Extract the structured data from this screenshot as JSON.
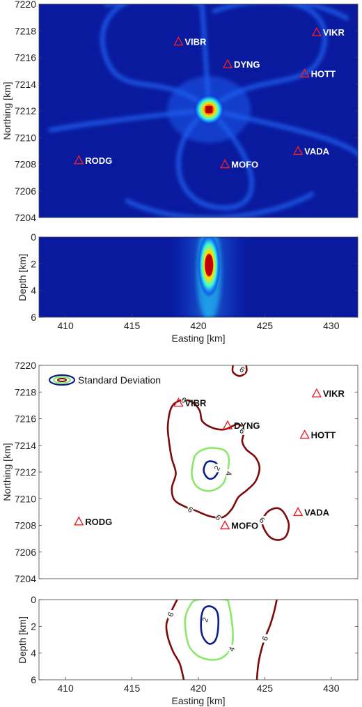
{
  "chart_data": [
    {
      "type": "heatmap",
      "panel": "map-density",
      "colormap": "jet",
      "xlim": [
        408,
        432
      ],
      "ylim": [
        7204,
        7220
      ],
      "xticks": [
        410,
        415,
        420,
        425,
        430
      ],
      "yticks": [
        7204,
        7206,
        7208,
        7210,
        7212,
        7214,
        7216,
        7218,
        7220
      ],
      "xlabel": "",
      "ylabel": "Northing [km]",
      "peak": {
        "x": 420.8,
        "y": 7212.1
      },
      "stations": [
        {
          "name": "VIBR",
          "x": 418.5,
          "y": 7217.2
        },
        {
          "name": "VIKR",
          "x": 428.9,
          "y": 7217.9
        },
        {
          "name": "DYNG",
          "x": 422.2,
          "y": 7215.5
        },
        {
          "name": "HOTT",
          "x": 428.0,
          "y": 7214.8
        },
        {
          "name": "VADA",
          "x": 427.5,
          "y": 7209.0
        },
        {
          "name": "RODG",
          "x": 411.0,
          "y": 7208.3
        },
        {
          "name": "MOFO",
          "x": 422.0,
          "y": 7208.0
        }
      ]
    },
    {
      "type": "heatmap",
      "panel": "depth-density",
      "colormap": "jet",
      "xlim": [
        408,
        432
      ],
      "ylim": [
        6,
        0
      ],
      "xticks": [
        410,
        415,
        420,
        425,
        430
      ],
      "yticks": [
        0,
        2,
        4,
        6
      ],
      "xlabel": "Easting [km]",
      "ylabel": "Depth [km]",
      "peak": {
        "x": 420.8,
        "depth": 2.1
      }
    },
    {
      "type": "line",
      "panel": "map-std-contours",
      "xlim": [
        408,
        432
      ],
      "ylim": [
        7204,
        7220
      ],
      "xticks": [
        410,
        415,
        420,
        425,
        430
      ],
      "yticks": [
        7204,
        7206,
        7208,
        7210,
        7212,
        7214,
        7216,
        7218,
        7220
      ],
      "xlabel": "",
      "ylabel": "Northing [km]",
      "legend": {
        "label": "Standard Deviation",
        "placement": "top-left"
      },
      "contour_labels": [
        "6",
        "6",
        "6",
        "6",
        "6",
        "6",
        "4",
        "2"
      ],
      "contours": [
        {
          "level": 2,
          "color": "#0b1e8c",
          "points": [
            [
              420.4,
              7212.2
            ],
            [
              420.6,
              7212.7
            ],
            [
              421.0,
              7212.8
            ],
            [
              421.4,
              7212.6
            ],
            [
              421.5,
              7212.1
            ],
            [
              421.2,
              7211.6
            ],
            [
              420.8,
              7211.5
            ],
            [
              420.5,
              7211.8
            ]
          ]
        },
        {
          "level": 4,
          "color": "#8be86a",
          "points": [
            [
              419.6,
              7212.7
            ],
            [
              419.8,
              7213.3
            ],
            [
              420.4,
              7213.7
            ],
            [
              421.2,
              7213.8
            ],
            [
              422.0,
              7213.6
            ],
            [
              422.3,
              7213.0
            ],
            [
              422.2,
              7212.1
            ],
            [
              421.9,
              7211.2
            ],
            [
              421.3,
              7210.7
            ],
            [
              420.5,
              7210.6
            ],
            [
              419.8,
              7211.0
            ],
            [
              419.5,
              7211.8
            ]
          ]
        },
        {
          "level": 6,
          "color": "#7b0c0c",
          "points": [
            [
              418.0,
              7216.9
            ],
            [
              418.8,
              7217.4
            ],
            [
              419.6,
              7217.2
            ],
            [
              420.1,
              7216.6
            ],
            [
              420.3,
              7215.8
            ],
            [
              421.1,
              7215.3
            ],
            [
              422.0,
              7215.2
            ],
            [
              423.0,
              7215.6
            ],
            [
              423.4,
              7215.0
            ],
            [
              423.3,
              7214.3
            ],
            [
              423.6,
              7213.7
            ],
            [
              424.3,
              7213.1
            ],
            [
              424.6,
              7212.3
            ],
            [
              424.3,
              7211.3
            ],
            [
              423.6,
              7210.6
            ],
            [
              423.0,
              7210.1
            ],
            [
              422.5,
              7209.2
            ],
            [
              421.8,
              7208.6
            ],
            [
              420.8,
              7208.7
            ],
            [
              419.8,
              7209.1
            ],
            [
              419.0,
              7209.4
            ],
            [
              418.2,
              7209.9
            ],
            [
              418.0,
              7210.8
            ],
            [
              418.3,
              7211.9
            ],
            [
              418.0,
              7213.0
            ],
            [
              417.8,
              7214.2
            ],
            [
              417.7,
              7215.5
            ]
          ]
        },
        {
          "level": 6,
          "color": "#7b0c0c",
          "points": [
            [
              424.8,
              7208.2
            ],
            [
              425.2,
              7209.0
            ],
            [
              425.9,
              7209.3
            ],
            [
              426.4,
              7209.0
            ],
            [
              426.8,
              7208.1
            ],
            [
              426.6,
              7207.2
            ],
            [
              426.0,
              7206.9
            ],
            [
              425.3,
              7207.2
            ]
          ]
        },
        {
          "level": 6,
          "color": "#7b0c0c",
          "points": [
            [
              422.6,
              7220.0
            ],
            [
              422.6,
              7219.5
            ],
            [
              423.1,
              7219.2
            ],
            [
              423.6,
              7219.5
            ],
            [
              423.6,
              7220.0
            ]
          ]
        }
      ],
      "stations": [
        {
          "name": "VIBR",
          "x": 418.5,
          "y": 7217.2
        },
        {
          "name": "VIKR",
          "x": 428.9,
          "y": 7217.9
        },
        {
          "name": "DYNG",
          "x": 422.2,
          "y": 7215.5
        },
        {
          "name": "HOTT",
          "x": 428.0,
          "y": 7214.8
        },
        {
          "name": "VADA",
          "x": 427.5,
          "y": 7209.0
        },
        {
          "name": "RODG",
          "x": 411.0,
          "y": 7208.3
        },
        {
          "name": "MOFO",
          "x": 422.0,
          "y": 7208.0
        }
      ]
    },
    {
      "type": "line",
      "panel": "depth-std-contours",
      "xlim": [
        408,
        432
      ],
      "ylim": [
        6,
        0
      ],
      "xticks": [
        410,
        415,
        420,
        425,
        430
      ],
      "yticks": [
        0,
        2,
        4,
        6
      ],
      "xlabel": "Easting [km]",
      "ylabel": "Depth [km]",
      "contour_labels": [
        "6",
        "2",
        "4",
        "6"
      ],
      "contours": [
        {
          "level": 2,
          "color": "#0b1e8c",
          "points": [
            [
              420.2,
              1.6
            ],
            [
              420.4,
              0.7
            ],
            [
              420.9,
              0.5
            ],
            [
              421.4,
              0.9
            ],
            [
              421.5,
              1.9
            ],
            [
              421.3,
              3.0
            ],
            [
              420.8,
              3.3
            ],
            [
              420.3,
              2.7
            ]
          ],
          "closed": true
        },
        {
          "level": 4,
          "color": "#8be86a",
          "points": [
            [
              419.0,
              1.5
            ],
            [
              419.4,
              0.4
            ],
            [
              420.0,
              0.0
            ],
            [
              422.0,
              0.0
            ],
            [
              422.3,
              0.4
            ],
            [
              422.5,
              1.5
            ],
            [
              422.6,
              2.6
            ],
            [
              422.5,
              3.5
            ],
            [
              422.0,
              4.2
            ],
            [
              421.3,
              4.5
            ],
            [
              420.4,
              4.4
            ],
            [
              419.7,
              4.0
            ],
            [
              419.2,
              3.2
            ]
          ],
          "closed": true
        },
        {
          "level": 6,
          "color": "#7b0c0c",
          "points": [
            [
              418.4,
              0.0
            ],
            [
              418.0,
              0.8
            ],
            [
              417.6,
              1.8
            ],
            [
              417.7,
              2.8
            ],
            [
              418.1,
              3.9
            ],
            [
              418.6,
              4.8
            ],
            [
              418.9,
              6.0
            ]
          ],
          "closed": false
        },
        {
          "level": 6,
          "color": "#7b0c0c",
          "points": [
            [
              425.9,
              0.0
            ],
            [
              425.7,
              0.9
            ],
            [
              425.4,
              1.9
            ],
            [
              425.0,
              2.9
            ],
            [
              424.7,
              3.9
            ],
            [
              424.5,
              4.9
            ],
            [
              424.4,
              6.0
            ]
          ],
          "closed": false
        }
      ]
    }
  ]
}
